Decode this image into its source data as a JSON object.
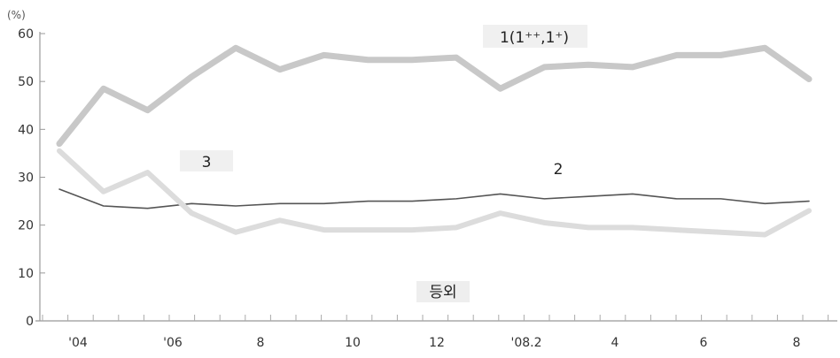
{
  "chart_data": {
    "type": "line",
    "y_unit": "(%)",
    "ylim": [
      0,
      60
    ],
    "yticks": [
      0,
      10,
      20,
      30,
      40,
      50,
      60
    ],
    "x_tick_labels": [
      "'04",
      "'06",
      "8",
      "10",
      "12",
      "'08.2",
      "4",
      "6",
      "8"
    ],
    "grid": false,
    "annotation": "등외",
    "series": [
      {
        "name": "1(1⁺⁺,1⁺)",
        "color": "#c8c8c8",
        "values": [
          37,
          48.5,
          44,
          51,
          57,
          52.5,
          55.5,
          54.5,
          54.5,
          55,
          48.5,
          53,
          53.5,
          53,
          55.5,
          55.5,
          57,
          50.5
        ]
      },
      {
        "name": "2",
        "color": "#555555",
        "values": [
          27.5,
          24,
          23.5,
          24.5,
          24,
          24.5,
          24.5,
          25,
          25,
          25.5,
          26.5,
          25.5,
          26,
          26.5,
          25.5,
          25.5,
          24.5,
          25
        ]
      },
      {
        "name": "3",
        "color": "#dcdcdc",
        "values": [
          35.5,
          27,
          31,
          22.5,
          18.5,
          21,
          19,
          19,
          19,
          19.5,
          22.5,
          20.5,
          19.5,
          19.5,
          19,
          18.5,
          18,
          23
        ]
      }
    ]
  }
}
